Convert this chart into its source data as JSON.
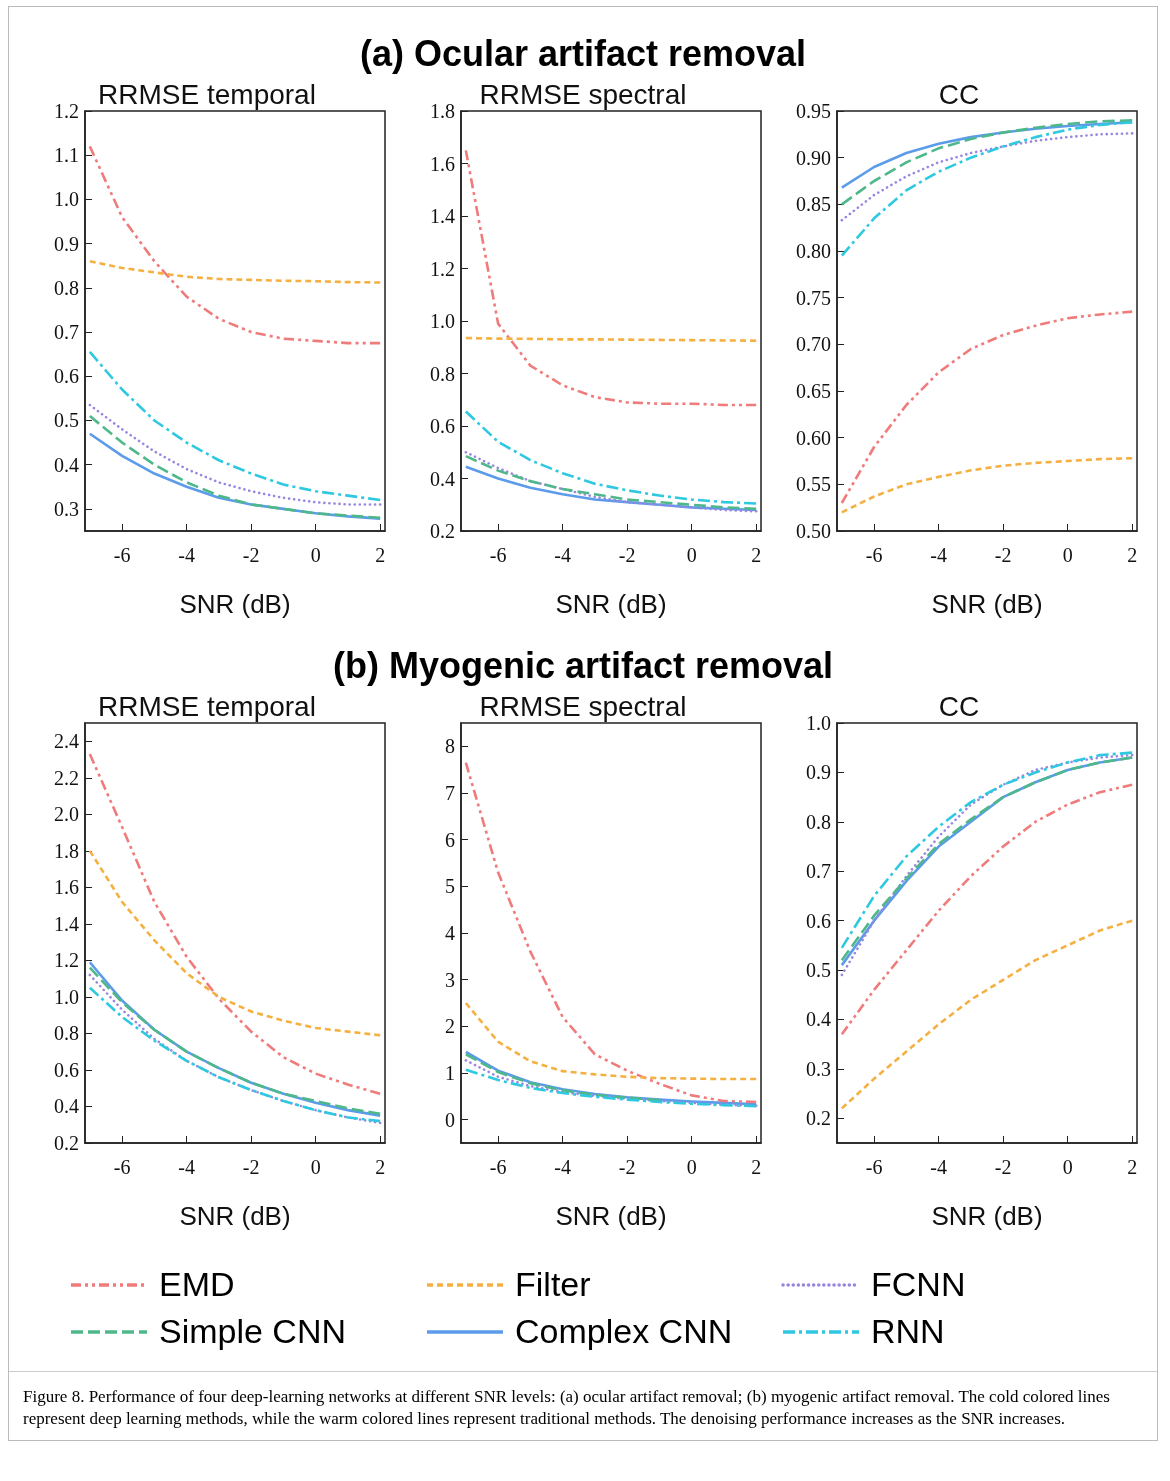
{
  "chart_data": [
    {
      "type": "line",
      "title": "RRMSE temporal",
      "xlabel": "SNR (dB)",
      "legend": "bottom",
      "annotations": [
        "(a) Ocular artifact removal"
      ],
      "x": [
        -7,
        -6,
        -5,
        -4,
        -3,
        -2,
        -1,
        0,
        1,
        2
      ],
      "xlim": [
        -7.15,
        2.15
      ],
      "xticks": [
        -6,
        -4,
        -2,
        0,
        2
      ],
      "ylim": [
        0.25,
        1.2
      ],
      "yticks": [
        0.3,
        0.4,
        0.5,
        0.6,
        0.7,
        0.8,
        0.9,
        {
          "value": 1,
          "label": "1.0"
        },
        1.1,
        1.2
      ],
      "series": [
        {
          "name": "EMD",
          "color": "#ef7b7b",
          "line_style": "dashdotdot",
          "values": [
            1.12,
            0.96,
            0.86,
            0.78,
            0.73,
            0.7,
            0.685,
            0.68,
            0.675,
            0.675
          ]
        },
        {
          "name": "Filter",
          "color": "#f5b042",
          "line_style": "dashed",
          "values": [
            0.86,
            0.845,
            0.835,
            0.825,
            0.82,
            0.818,
            0.816,
            0.815,
            0.813,
            0.812
          ]
        },
        {
          "name": "FCNN",
          "color": "#9a86e0",
          "line_style": "dotted",
          "values": [
            0.535,
            0.48,
            0.43,
            0.39,
            0.36,
            0.34,
            0.325,
            0.315,
            0.31,
            0.31
          ]
        },
        {
          "name": "Simple CNN",
          "color": "#4fb88a",
          "line_style": "longdash",
          "values": [
            0.51,
            0.45,
            0.4,
            0.36,
            0.33,
            0.31,
            0.3,
            0.29,
            0.285,
            0.28
          ]
        },
        {
          "name": "Complex CNN",
          "color": "#5b9bea",
          "line_style": "solid",
          "values": [
            0.47,
            0.42,
            0.38,
            0.35,
            0.325,
            0.31,
            0.3,
            0.29,
            0.283,
            0.278
          ]
        },
        {
          "name": "RNN",
          "color": "#2ec8e0",
          "line_style": "dashdot",
          "values": [
            0.655,
            0.57,
            0.5,
            0.45,
            0.41,
            0.38,
            0.355,
            0.34,
            0.33,
            0.32
          ]
        }
      ]
    },
    {
      "type": "line",
      "title": "RRMSE spectral",
      "xlabel": "SNR (dB)",
      "x": [
        -7,
        -6,
        -5,
        -4,
        -3,
        -2,
        -1,
        0,
        1,
        2
      ],
      "xlim": [
        -7.15,
        2.15
      ],
      "xticks": [
        -6,
        -4,
        -2,
        0,
        2
      ],
      "ylim": [
        0.2,
        1.8
      ],
      "yticks": [
        0.2,
        0.4,
        0.6,
        0.8,
        {
          "value": 1,
          "label": "1.0"
        },
        1.2,
        1.4,
        1.6,
        1.8
      ],
      "series": [
        {
          "color": "#ef7b7b",
          "line_style": "dashdotdot",
          "values": [
            1.65,
            0.99,
            0.83,
            0.755,
            0.71,
            0.69,
            0.685,
            0.685,
            0.68,
            0.68
          ]
        },
        {
          "color": "#f5b042",
          "line_style": "dashed",
          "values": [
            0.935,
            0.933,
            0.932,
            0.93,
            0.93,
            0.929,
            0.928,
            0.927,
            0.926,
            0.925
          ]
        },
        {
          "color": "#9a86e0",
          "line_style": "dotted",
          "values": [
            0.5,
            0.44,
            0.39,
            0.36,
            0.33,
            0.31,
            0.3,
            0.29,
            0.28,
            0.275
          ]
        },
        {
          "color": "#4fb88a",
          "line_style": "longdash",
          "values": [
            0.485,
            0.43,
            0.39,
            0.36,
            0.34,
            0.32,
            0.31,
            0.3,
            0.29,
            0.285
          ]
        },
        {
          "color": "#5b9bea",
          "line_style": "solid",
          "values": [
            0.445,
            0.4,
            0.365,
            0.34,
            0.32,
            0.31,
            0.3,
            0.29,
            0.285,
            0.28
          ]
        },
        {
          "color": "#2ec8e0",
          "line_style": "dashdot",
          "values": [
            0.655,
            0.54,
            0.47,
            0.42,
            0.38,
            0.355,
            0.335,
            0.32,
            0.31,
            0.305
          ]
        }
      ]
    },
    {
      "type": "line",
      "title": "CC",
      "xlabel": "SNR (dB)",
      "x": [
        -7,
        -6,
        -5,
        -4,
        -3,
        -2,
        -1,
        0,
        1,
        2
      ],
      "xlim": [
        -7.15,
        2.15
      ],
      "xticks": [
        -6,
        -4,
        -2,
        0,
        2
      ],
      "ylim": [
        0.5,
        0.95
      ],
      "yticks": [
        {
          "value": 0.5,
          "label": "0.50"
        },
        0.55,
        {
          "value": 0.6,
          "label": "0.60"
        },
        0.65,
        {
          "value": 0.7,
          "label": "0.70"
        },
        0.75,
        {
          "value": 0.8,
          "label": "0.80"
        },
        0.85,
        {
          "value": 0.9,
          "label": "0.90"
        },
        0.95
      ],
      "series": [
        {
          "color": "#ef7b7b",
          "line_style": "dashdotdot",
          "values": [
            0.53,
            0.59,
            0.635,
            0.67,
            0.695,
            0.71,
            0.72,
            0.728,
            0.732,
            0.735
          ]
        },
        {
          "color": "#f5b042",
          "line_style": "dashed",
          "values": [
            0.52,
            0.537,
            0.55,
            0.558,
            0.565,
            0.57,
            0.573,
            0.575,
            0.577,
            0.578
          ]
        },
        {
          "color": "#9a86e0",
          "line_style": "dotted",
          "values": [
            0.833,
            0.86,
            0.88,
            0.895,
            0.905,
            0.912,
            0.918,
            0.922,
            0.925,
            0.926
          ]
        },
        {
          "color": "#4fb88a",
          "line_style": "longdash",
          "values": [
            0.85,
            0.875,
            0.895,
            0.91,
            0.92,
            0.927,
            0.932,
            0.936,
            0.939,
            0.94
          ]
        },
        {
          "color": "#5b9bea",
          "line_style": "solid",
          "values": [
            0.868,
            0.89,
            0.905,
            0.915,
            0.922,
            0.927,
            0.931,
            0.934,
            0.936,
            0.938
          ]
        },
        {
          "color": "#2ec8e0",
          "line_style": "dashdot",
          "values": [
            0.795,
            0.835,
            0.865,
            0.885,
            0.9,
            0.912,
            0.922,
            0.93,
            0.935,
            0.938
          ]
        }
      ]
    },
    {
      "type": "line",
      "title": "RRMSE temporal",
      "xlabel": "SNR (dB)",
      "annotations": [
        "(b) Myogenic artifact removal"
      ],
      "x": [
        -7,
        -6,
        -5,
        -4,
        -3,
        -2,
        -1,
        0,
        1,
        2
      ],
      "xlim": [
        -7.15,
        2.15
      ],
      "xticks": [
        -6,
        -4,
        -2,
        0,
        2
      ],
      "ylim": [
        0.2,
        2.5
      ],
      "yticks": [
        0.2,
        0.4,
        0.6,
        0.8,
        {
          "value": 1,
          "label": "1.0"
        },
        1.2,
        1.4,
        1.6,
        1.8,
        {
          "value": 2,
          "label": "2.0"
        },
        2.2,
        2.4
      ],
      "series": [
        {
          "color": "#ef7b7b",
          "line_style": "dashdotdot",
          "values": [
            2.33,
            1.93,
            1.52,
            1.22,
            0.99,
            0.81,
            0.67,
            0.58,
            0.52,
            0.47
          ]
        },
        {
          "color": "#f5b042",
          "line_style": "dashed",
          "values": [
            1.8,
            1.52,
            1.31,
            1.13,
            1,
            0.92,
            0.87,
            0.83,
            0.81,
            0.79
          ]
        },
        {
          "color": "#9a86e0",
          "line_style": "dotted",
          "values": [
            1.12,
            0.93,
            0.77,
            0.65,
            0.56,
            0.49,
            0.43,
            0.38,
            0.34,
            0.31
          ]
        },
        {
          "color": "#4fb88a",
          "line_style": "longdash",
          "values": [
            1.16,
            0.97,
            0.82,
            0.7,
            0.61,
            0.53,
            0.47,
            0.43,
            0.39,
            0.36
          ]
        },
        {
          "color": "#5b9bea",
          "line_style": "solid",
          "values": [
            1.19,
            0.98,
            0.82,
            0.7,
            0.61,
            0.53,
            0.47,
            0.42,
            0.38,
            0.35
          ]
        },
        {
          "color": "#2ec8e0",
          "line_style": "dashdot",
          "values": [
            1.05,
            0.89,
            0.76,
            0.65,
            0.56,
            0.49,
            0.43,
            0.38,
            0.34,
            0.32
          ]
        }
      ]
    },
    {
      "type": "line",
      "title": "RRMSE spectral",
      "xlabel": "SNR (dB)",
      "x": [
        -7,
        -6,
        -5,
        -4,
        -3,
        -2,
        -1,
        0,
        1,
        2
      ],
      "xlim": [
        -7.15,
        2.15
      ],
      "xticks": [
        -6,
        -4,
        -2,
        0,
        2
      ],
      "ylim": [
        -0.5,
        8.5
      ],
      "yticks": [
        0,
        1,
        2,
        3,
        4,
        5,
        6,
        7,
        8
      ],
      "series": [
        {
          "color": "#ef7b7b",
          "line_style": "dashdotdot",
          "values": [
            7.65,
            5.3,
            3.6,
            2.2,
            1.4,
            1.05,
            0.77,
            0.52,
            0.4,
            0.38
          ]
        },
        {
          "color": "#f5b042",
          "line_style": "dashed",
          "values": [
            2.5,
            1.67,
            1.25,
            1.04,
            0.97,
            0.92,
            0.89,
            0.88,
            0.87,
            0.87
          ]
        },
        {
          "color": "#9a86e0",
          "line_style": "dotted",
          "values": [
            1.27,
            0.92,
            0.72,
            0.59,
            0.51,
            0.45,
            0.4,
            0.36,
            0.32,
            0.3
          ]
        },
        {
          "color": "#4fb88a",
          "line_style": "longdash",
          "values": [
            1.4,
            1.02,
            0.78,
            0.63,
            0.53,
            0.47,
            0.42,
            null,
            null,
            null
          ]
        },
        {
          "color": "#5b9bea",
          "line_style": "solid",
          "values": [
            1.45,
            1.05,
            0.8,
            0.65,
            0.55,
            0.48,
            0.43,
            0.39,
            0.36,
            0.33
          ]
        },
        {
          "color": "#2ec8e0",
          "line_style": "dashdot",
          "values": [
            1.07,
            0.85,
            0.68,
            0.57,
            0.49,
            0.43,
            0.38,
            0.34,
            0.31,
            0.29
          ]
        }
      ]
    },
    {
      "type": "line",
      "title": "CC",
      "xlabel": "SNR (dB)",
      "annotations": [
        "Figure 8. Performance of four deep-learning networks at different SNR levels: (a) ocular artifact removal; (b) myogenic artifact removal. The cold colored lines represent deep learning methods, while the warm colored lines represent traditional methods. The denoising performance increases as the SNR increases."
      ],
      "x": [
        -7,
        -6,
        -5,
        -4,
        -3,
        -2,
        -1,
        0,
        1,
        2
      ],
      "xlim": [
        -7.15,
        2.15
      ],
      "xticks": [
        -6,
        -4,
        -2,
        0,
        2
      ],
      "ylim": [
        0.15,
        1
      ],
      "yticks": [
        0.2,
        0.3,
        0.4,
        0.5,
        0.6,
        0.7,
        0.8,
        0.9,
        {
          "value": 1,
          "label": "1.0"
        }
      ],
      "series": [
        {
          "color": "#ef7b7b",
          "line_style": "dashdotdot",
          "values": [
            0.37,
            0.46,
            0.54,
            0.62,
            0.69,
            0.75,
            0.8,
            0.835,
            0.86,
            0.875
          ]
        },
        {
          "color": "#f5b042",
          "line_style": "dashed",
          "values": [
            0.22,
            0.28,
            0.335,
            0.39,
            0.44,
            0.48,
            0.52,
            0.55,
            0.58,
            0.6
          ]
        },
        {
          "color": "#9a86e0",
          "line_style": "dotted",
          "values": [
            0.49,
            0.6,
            0.69,
            0.77,
            0.835,
            0.875,
            0.905,
            0.92,
            0.93,
            0.935
          ]
        },
        {
          "color": "#4fb88a",
          "line_style": "longdash",
          "values": [
            0.52,
            0.61,
            0.685,
            0.755,
            0.805,
            0.85,
            0.88,
            0.905,
            0.92,
            0.93
          ]
        },
        {
          "color": "#5b9bea",
          "line_style": "solid",
          "values": [
            0.51,
            0.6,
            0.68,
            0.75,
            0.8,
            0.85,
            0.88,
            0.905,
            0.92,
            0.93
          ]
        },
        {
          "color": "#2ec8e0",
          "line_style": "dashdot",
          "values": [
            0.545,
            0.65,
            0.73,
            0.79,
            0.84,
            0.875,
            0.9,
            0.92,
            0.935,
            0.94
          ]
        }
      ]
    }
  ]
}
